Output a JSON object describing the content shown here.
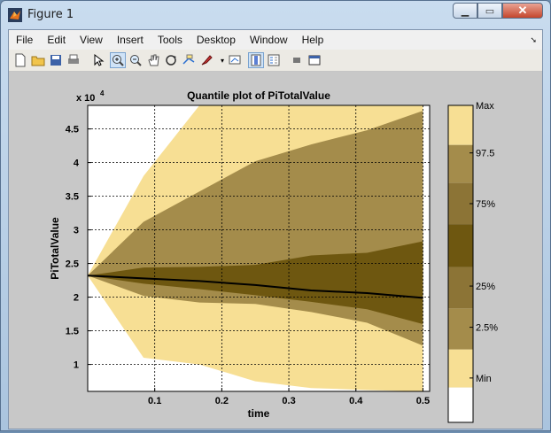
{
  "window": {
    "title": "Figure 1"
  },
  "menu": [
    "File",
    "Edit",
    "View",
    "Insert",
    "Tools",
    "Desktop",
    "Window",
    "Help"
  ],
  "toolbar_icons": [
    "new-figure-icon",
    "open-file-icon",
    "save-icon",
    "print-icon",
    "pointer-icon",
    "zoom-in-icon",
    "zoom-out-icon",
    "pan-icon",
    "rotate-3d-icon",
    "data-cursor-icon",
    "brush-icon",
    "link-icon",
    "colorbar-icon",
    "legend-icon",
    "hide-plot-tools-icon",
    "show-plot-tools-icon"
  ],
  "colors": {
    "lightest": "#f7df94",
    "light": "#a48c4b",
    "mid": "#8c7436",
    "dark": "#6e5710",
    "median": "#000000"
  },
  "chart_data": {
    "type": "area",
    "title": "Quantile plot of PiTotalValue",
    "xlabel": "time",
    "ylabel": "PiTotalValue",
    "y_exponent": "x 10^4",
    "xlim": [
      0,
      0.51
    ],
    "ylim": [
      0.6,
      4.85
    ],
    "xticks": [
      "0.1",
      "0.2",
      "0.3",
      "0.4",
      "0.5"
    ],
    "yticks": [
      "1",
      "1.5",
      "2",
      "2.5",
      "3",
      "3.5",
      "4",
      "4.5"
    ],
    "x": [
      0,
      0.0833,
      0.1667,
      0.25,
      0.3333,
      0.4167,
      0.5
    ],
    "bands": {
      "min": [
        2.32,
        1.1,
        1.0,
        0.75,
        0.65,
        0.62,
        0.6
      ],
      "p2_5": [
        2.32,
        2.02,
        1.92,
        1.9,
        1.78,
        1.62,
        1.28
      ],
      "p25": [
        2.32,
        2.2,
        2.12,
        2.03,
        1.93,
        1.82,
        1.6
      ],
      "median": [
        2.32,
        2.28,
        2.24,
        2.18,
        2.1,
        2.06,
        1.99
      ],
      "p75": [
        2.32,
        2.44,
        2.45,
        2.48,
        2.62,
        2.66,
        2.83
      ],
      "p97_5": [
        2.32,
        3.12,
        3.57,
        4.02,
        4.27,
        4.48,
        4.77
      ],
      "max": [
        2.32,
        3.8,
        4.85,
        4.85,
        4.85,
        4.85,
        4.85
      ]
    },
    "colorbar_labels": [
      "Max",
      "97.5",
      "75%",
      "25%",
      "2.5%",
      "Min"
    ]
  }
}
